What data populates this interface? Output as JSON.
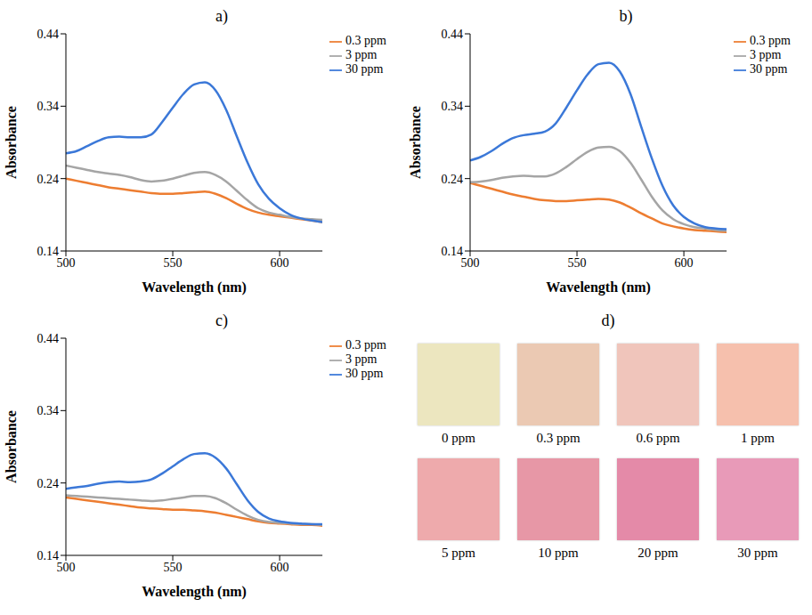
{
  "chart_data": [
    {
      "type": "line",
      "title": "a)",
      "x_label": "Wavelength (nm)",
      "y_label": "Absorbance",
      "x": [
        500,
        505,
        510,
        515,
        520,
        525,
        530,
        535,
        540,
        545,
        550,
        555,
        560,
        565,
        570,
        575,
        580,
        585,
        590,
        595,
        600,
        605,
        610,
        615,
        620
      ],
      "xlim": [
        500,
        620
      ],
      "xticks": [
        500,
        550,
        600
      ],
      "ylim": [
        0.14,
        0.44
      ],
      "yticks": [
        0.14,
        0.24,
        0.34,
        0.44
      ],
      "grid": false,
      "legend": "right",
      "series": [
        {
          "name": "0.3 ppm",
          "color": "#ed7d31",
          "values": [
            0.24,
            0.237,
            0.234,
            0.231,
            0.228,
            0.226,
            0.224,
            0.222,
            0.22,
            0.219,
            0.219,
            0.22,
            0.221,
            0.222,
            0.219,
            0.213,
            0.205,
            0.198,
            0.193,
            0.19,
            0.188,
            0.186,
            0.184,
            0.182,
            0.18
          ]
        },
        {
          "name": "3 ppm",
          "color": "#a5a5a5",
          "values": [
            0.258,
            0.255,
            0.252,
            0.249,
            0.247,
            0.245,
            0.242,
            0.238,
            0.236,
            0.237,
            0.24,
            0.244,
            0.248,
            0.249,
            0.245,
            0.236,
            0.223,
            0.21,
            0.199,
            0.193,
            0.19,
            0.187,
            0.185,
            0.184,
            0.183
          ]
        },
        {
          "name": "30 ppm",
          "color": "#3b78d8",
          "values": [
            0.275,
            0.278,
            0.285,
            0.292,
            0.297,
            0.298,
            0.297,
            0.297,
            0.301,
            0.318,
            0.338,
            0.357,
            0.37,
            0.373,
            0.362,
            0.335,
            0.298,
            0.262,
            0.232,
            0.212,
            0.199,
            0.19,
            0.185,
            0.182,
            0.18
          ]
        }
      ]
    },
    {
      "type": "line",
      "title": "b)",
      "x_label": "Wavelength (nm)",
      "y_label": "Absorbance",
      "x": [
        500,
        505,
        510,
        515,
        520,
        525,
        530,
        535,
        540,
        545,
        550,
        555,
        560,
        565,
        570,
        575,
        580,
        585,
        590,
        595,
        600,
        605,
        610,
        615,
        620
      ],
      "xlim": [
        500,
        620
      ],
      "xticks": [
        500,
        550,
        600
      ],
      "ylim": [
        0.14,
        0.44
      ],
      "yticks": [
        0.14,
        0.24,
        0.34,
        0.44
      ],
      "grid": false,
      "legend": "right",
      "series": [
        {
          "name": "0.3 ppm",
          "color": "#ed7d31",
          "values": [
            0.234,
            0.23,
            0.226,
            0.222,
            0.218,
            0.215,
            0.212,
            0.21,
            0.209,
            0.209,
            0.21,
            0.211,
            0.212,
            0.211,
            0.207,
            0.2,
            0.192,
            0.185,
            0.178,
            0.174,
            0.171,
            0.169,
            0.168,
            0.167,
            0.166
          ]
        },
        {
          "name": "3 ppm",
          "color": "#a5a5a5",
          "values": [
            0.235,
            0.236,
            0.238,
            0.241,
            0.243,
            0.244,
            0.243,
            0.243,
            0.247,
            0.256,
            0.267,
            0.277,
            0.283,
            0.284,
            0.278,
            0.262,
            0.239,
            0.215,
            0.196,
            0.184,
            0.177,
            0.173,
            0.171,
            0.169,
            0.168
          ]
        },
        {
          "name": "30 ppm",
          "color": "#3b78d8",
          "values": [
            0.265,
            0.27,
            0.278,
            0.288,
            0.296,
            0.3,
            0.302,
            0.305,
            0.316,
            0.338,
            0.362,
            0.384,
            0.398,
            0.4,
            0.388,
            0.357,
            0.312,
            0.268,
            0.23,
            0.203,
            0.187,
            0.178,
            0.173,
            0.171,
            0.17
          ]
        }
      ]
    },
    {
      "type": "line",
      "title": "c)",
      "x_label": "Wavelength (nm)",
      "y_label": "Absorbance",
      "x": [
        500,
        505,
        510,
        515,
        520,
        525,
        530,
        535,
        540,
        545,
        550,
        555,
        560,
        565,
        570,
        575,
        580,
        585,
        590,
        595,
        600,
        605,
        610,
        615,
        620
      ],
      "xlim": [
        500,
        620
      ],
      "xticks": [
        500,
        550,
        600
      ],
      "ylim": [
        0.14,
        0.44
      ],
      "yticks": [
        0.14,
        0.24,
        0.34,
        0.44
      ],
      "grid": false,
      "legend": "right",
      "series": [
        {
          "name": "0.3 ppm",
          "color": "#ed7d31",
          "values": [
            0.22,
            0.218,
            0.216,
            0.214,
            0.212,
            0.21,
            0.208,
            0.206,
            0.205,
            0.204,
            0.203,
            0.203,
            0.202,
            0.201,
            0.199,
            0.196,
            0.193,
            0.19,
            0.187,
            0.185,
            0.184,
            0.183,
            0.182,
            0.182,
            0.181
          ]
        },
        {
          "name": "3 ppm",
          "color": "#a5a5a5",
          "values": [
            0.223,
            0.222,
            0.221,
            0.22,
            0.219,
            0.218,
            0.217,
            0.216,
            0.215,
            0.216,
            0.218,
            0.22,
            0.222,
            0.222,
            0.219,
            0.212,
            0.203,
            0.195,
            0.189,
            0.186,
            0.185,
            0.184,
            0.183,
            0.183,
            0.182
          ]
        },
        {
          "name": "30 ppm",
          "color": "#3b78d8",
          "values": [
            0.232,
            0.234,
            0.236,
            0.239,
            0.241,
            0.242,
            0.241,
            0.242,
            0.245,
            0.253,
            0.263,
            0.273,
            0.28,
            0.281,
            0.275,
            0.26,
            0.238,
            0.216,
            0.2,
            0.191,
            0.187,
            0.185,
            0.184,
            0.183,
            0.183
          ]
        }
      ]
    },
    {
      "type": "swatch",
      "title": "d)",
      "categories": [
        "0 ppm",
        "0.3 ppm",
        "0.6 ppm",
        "1 ppm",
        "5 ppm",
        "10 ppm",
        "20 ppm",
        "30 ppm"
      ],
      "colors": [
        "#ece6bf",
        "#ebc9b3",
        "#f0c5bb",
        "#f6c0ad",
        "#eeaaac",
        "#e797a6",
        "#e48aa8",
        "#e89ab8"
      ]
    }
  ]
}
